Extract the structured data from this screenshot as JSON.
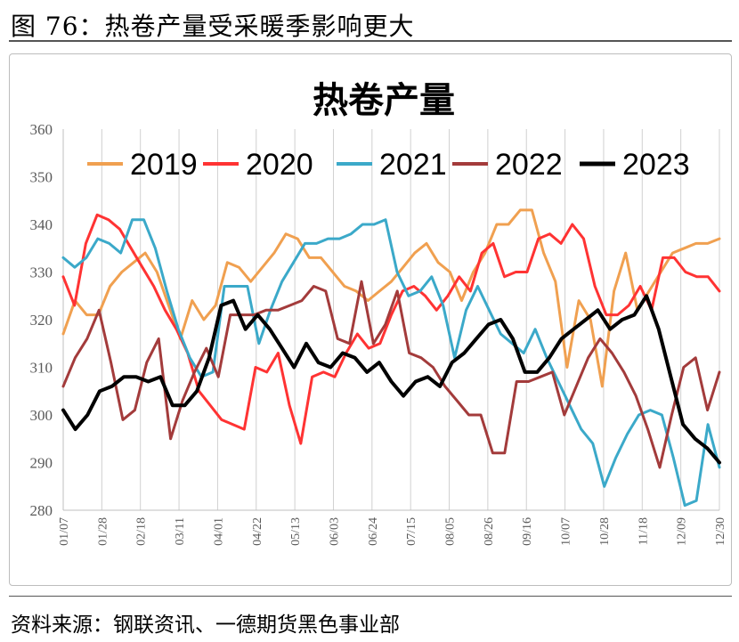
{
  "figure": {
    "caption": "图 76：热卷产量受采暖季影响更大",
    "source": "资料来源：钢联资讯、一德期货黑色事业部"
  },
  "chart_data": {
    "type": "line",
    "title": "热卷产量",
    "xlabel": "",
    "ylabel": "",
    "ylim": [
      280,
      360
    ],
    "yticks": [
      280,
      290,
      300,
      310,
      320,
      330,
      340,
      350,
      360
    ],
    "xtick_labels": [
      "01/07",
      "01/28",
      "02/18",
      "03/11",
      "04/01",
      "04/22",
      "05/13",
      "06/03",
      "06/24",
      "07/15",
      "08/05",
      "08/26",
      "09/16",
      "10/07",
      "10/28",
      "11/18",
      "12/09",
      "12/30"
    ],
    "grid": "vertical",
    "legend_position": "top",
    "series": [
      {
        "name": "2019",
        "color": "#F0A050",
        "width": 3,
        "values": [
          317,
          324,
          321,
          321,
          327,
          330,
          332,
          334,
          330,
          323,
          316,
          324,
          320,
          323,
          332,
          331,
          328,
          331,
          334,
          338,
          337,
          333,
          333,
          330,
          327,
          326,
          324,
          326,
          328,
          331,
          334,
          336,
          332,
          330,
          324,
          330,
          334,
          340,
          340,
          343,
          343,
          334,
          328,
          310,
          324,
          320,
          306,
          326,
          334,
          322,
          326,
          330,
          334,
          335,
          336,
          336,
          337
        ]
      },
      {
        "name": "2020",
        "color": "#FF3333",
        "width": 3,
        "values": [
          329,
          323,
          336,
          342,
          341,
          339,
          335,
          331,
          327,
          322,
          318,
          313,
          305,
          302,
          299,
          298,
          297,
          310,
          309,
          313,
          302,
          294,
          308,
          309,
          308,
          313,
          317,
          314,
          315,
          321,
          326,
          327,
          325,
          322,
          325,
          329,
          326,
          334,
          336,
          329,
          330,
          330,
          337,
          338,
          336,
          340,
          337,
          327,
          321,
          321,
          323,
          327,
          322,
          333,
          333,
          330,
          329,
          329,
          326
        ]
      },
      {
        "name": "2021",
        "color": "#3BA9C9",
        "width": 3,
        "values": [
          333,
          331,
          333,
          337,
          336,
          334,
          341,
          341,
          335,
          326,
          318,
          312,
          308,
          309,
          327,
          327,
          327,
          315,
          322,
          328,
          332,
          336,
          336,
          337,
          337,
          338,
          340,
          340,
          341,
          330,
          325,
          326,
          329,
          323,
          312,
          322,
          327,
          322,
          317,
          315,
          313,
          318,
          312,
          307,
          302,
          297,
          294,
          285,
          291,
          296,
          300,
          301,
          300,
          291,
          281,
          282,
          298,
          289
        ]
      },
      {
        "name": "2022",
        "color": "#A33B3B",
        "width": 3,
        "values": [
          306,
          312,
          316,
          322,
          311,
          299,
          301,
          311,
          316,
          295,
          303,
          309,
          314,
          308,
          321,
          321,
          321,
          322,
          322,
          323,
          324,
          327,
          326,
          316,
          315,
          328,
          315,
          319,
          326,
          313,
          312,
          310,
          306,
          303,
          300,
          300,
          292,
          292,
          307,
          307,
          308,
          309,
          300,
          306,
          312,
          316,
          313,
          309,
          304,
          297,
          289,
          300,
          310,
          312,
          301,
          309
        ]
      },
      {
        "name": "2023",
        "color": "#000000",
        "width": 4,
        "values": [
          301,
          297,
          300,
          305,
          306,
          308,
          308,
          307,
          308,
          302,
          302,
          305,
          312,
          323,
          324,
          318,
          321,
          318,
          314,
          310,
          315,
          311,
          310,
          313,
          312,
          309,
          311,
          307,
          304,
          307,
          308,
          306,
          311,
          313,
          316,
          319,
          320,
          316,
          309,
          309,
          312,
          316,
          318,
          320,
          322,
          318,
          320,
          321,
          325,
          318,
          308,
          298,
          295,
          293,
          290
        ]
      }
    ]
  }
}
